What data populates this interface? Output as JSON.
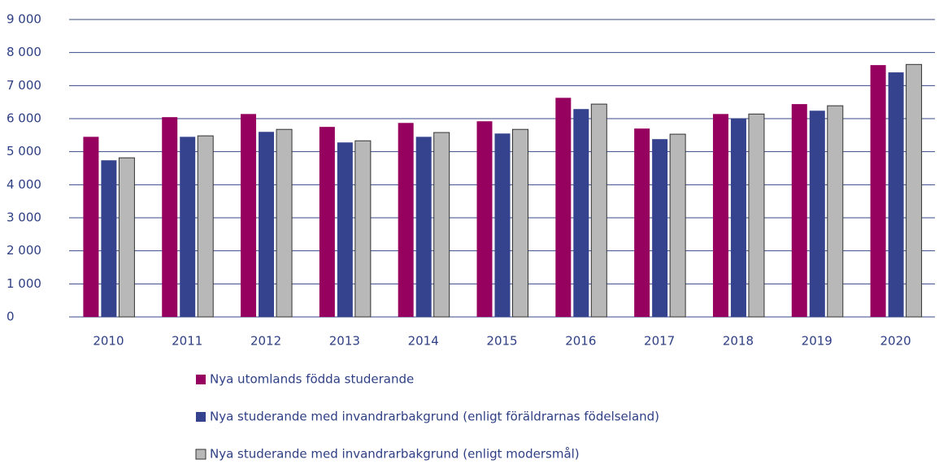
{
  "chart_data": {
    "type": "bar",
    "categories": [
      "2010",
      "2011",
      "2012",
      "2013",
      "2014",
      "2015",
      "2016",
      "2017",
      "2018",
      "2019",
      "2020"
    ],
    "series": [
      {
        "name": "Nya utomlands födda studerande",
        "color": "#96005e",
        "values": [
          5450,
          6045,
          6140,
          5750,
          5870,
          5920,
          6630,
          5700,
          6140,
          6440,
          7620
        ]
      },
      {
        "name": "Nya studerande med invandrarbakgrund (enligt föräldrarnas födelseland)",
        "color": "#35438e",
        "values": [
          4740,
          5450,
          5600,
          5280,
          5450,
          5550,
          6290,
          5380,
          5990,
          6240,
          7400
        ]
      },
      {
        "name": "Nya studerande med invandrarbakgrund (enligt modersmål)",
        "color": "#b8b8b8",
        "values": [
          4815,
          5480,
          5675,
          5330,
          5580,
          5675,
          6440,
          5530,
          6140,
          6390,
          7640
        ]
      }
    ],
    "ylim": [
      0,
      9000
    ],
    "yticks": [
      0,
      {
        "value": 1000,
        "label": "1 000"
      },
      {
        "value": 2000,
        "label": "2 000"
      },
      {
        "value": 3000,
        "label": "3 000"
      },
      {
        "value": 4000,
        "label": "4 000"
      },
      {
        "value": 5000,
        "label": "5 000"
      },
      {
        "value": 6000,
        "label": "6 000"
      },
      {
        "value": 7000,
        "label": "7 000"
      },
      {
        "value": 8000,
        "label": "8 000"
      },
      {
        "value": 9000,
        "label": "9 000"
      }
    ],
    "grid": true
  }
}
